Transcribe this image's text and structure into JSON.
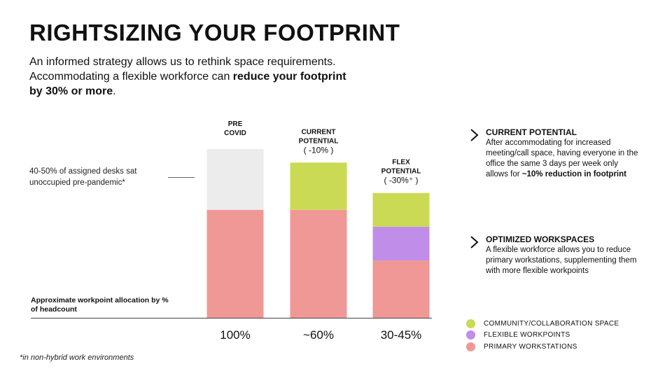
{
  "title": "RIGHTSIZING YOUR FOOTPRINT",
  "subtitle": {
    "text_before": "An informed strategy allows us to rethink space requirements. Accommodating a flexible workforce can ",
    "bold": "reduce your footprint by 30% or more",
    "text_after": "."
  },
  "annotations": {
    "unoccupied_note": "40-50% of assigned desks sat unoccupied pre-pandemic*",
    "axis_note": "Approximate workpoint allocation by % of headcount",
    "footnote": "*in non-hybrid work environments"
  },
  "colors": {
    "unoccupied": "#ececec",
    "community": "#cbda55",
    "flexible": "#c08ee8",
    "primary": "#ef9896"
  },
  "chart_data": {
    "type": "bar",
    "stacked": true,
    "categories": [
      {
        "title": [
          "PRE",
          "COVID"
        ],
        "change": "",
        "label": "100%"
      },
      {
        "title": [
          "CURRENT",
          "POTENTIAL"
        ],
        "change": "( -10% )",
        "label": "~60%"
      },
      {
        "title": [
          "FLEX",
          "POTENTIAL"
        ],
        "change": "( -30%⁺ )",
        "label": "30-45%"
      }
    ],
    "series": [
      {
        "key": "primary",
        "name": "PRIMARY WORKSTATIONS",
        "values": [
          64,
          64,
          34
        ]
      },
      {
        "key": "flexible",
        "name": "FLEXIBLE WORKPOINTS",
        "values": [
          0,
          0,
          20
        ]
      },
      {
        "key": "community",
        "name": "COMMUNITY/COLLABORATION SPACE",
        "values": [
          0,
          28,
          20
        ]
      },
      {
        "key": "unoccupied",
        "name": "",
        "values": [
          36,
          0,
          0
        ]
      }
    ],
    "ylim": [
      0,
      100
    ]
  },
  "right_panel": [
    {
      "heading": "CURRENT POTENTIAL",
      "body_before": "After accommodating for increased meeting/call space, having everyone in the office the same 3 days per week only allows for ",
      "body_bold": "~10% reduction in footprint",
      "body_after": ""
    },
    {
      "heading": "OPTIMIZED WORKSPACES",
      "body_before": "A flexible workforce allows you to reduce primary workstations, supplementing them with more flexible workpoints",
      "body_bold": "",
      "body_after": ""
    }
  ],
  "legend": [
    {
      "key": "community",
      "label": "COMMUNITY/COLLABORATION SPACE"
    },
    {
      "key": "flexible",
      "label": "FLEXIBLE WORKPOINTS"
    },
    {
      "key": "primary",
      "label": "PRIMARY WORKSTATIONS"
    }
  ],
  "icons": {
    "chevron": "chevron-right-icon"
  }
}
